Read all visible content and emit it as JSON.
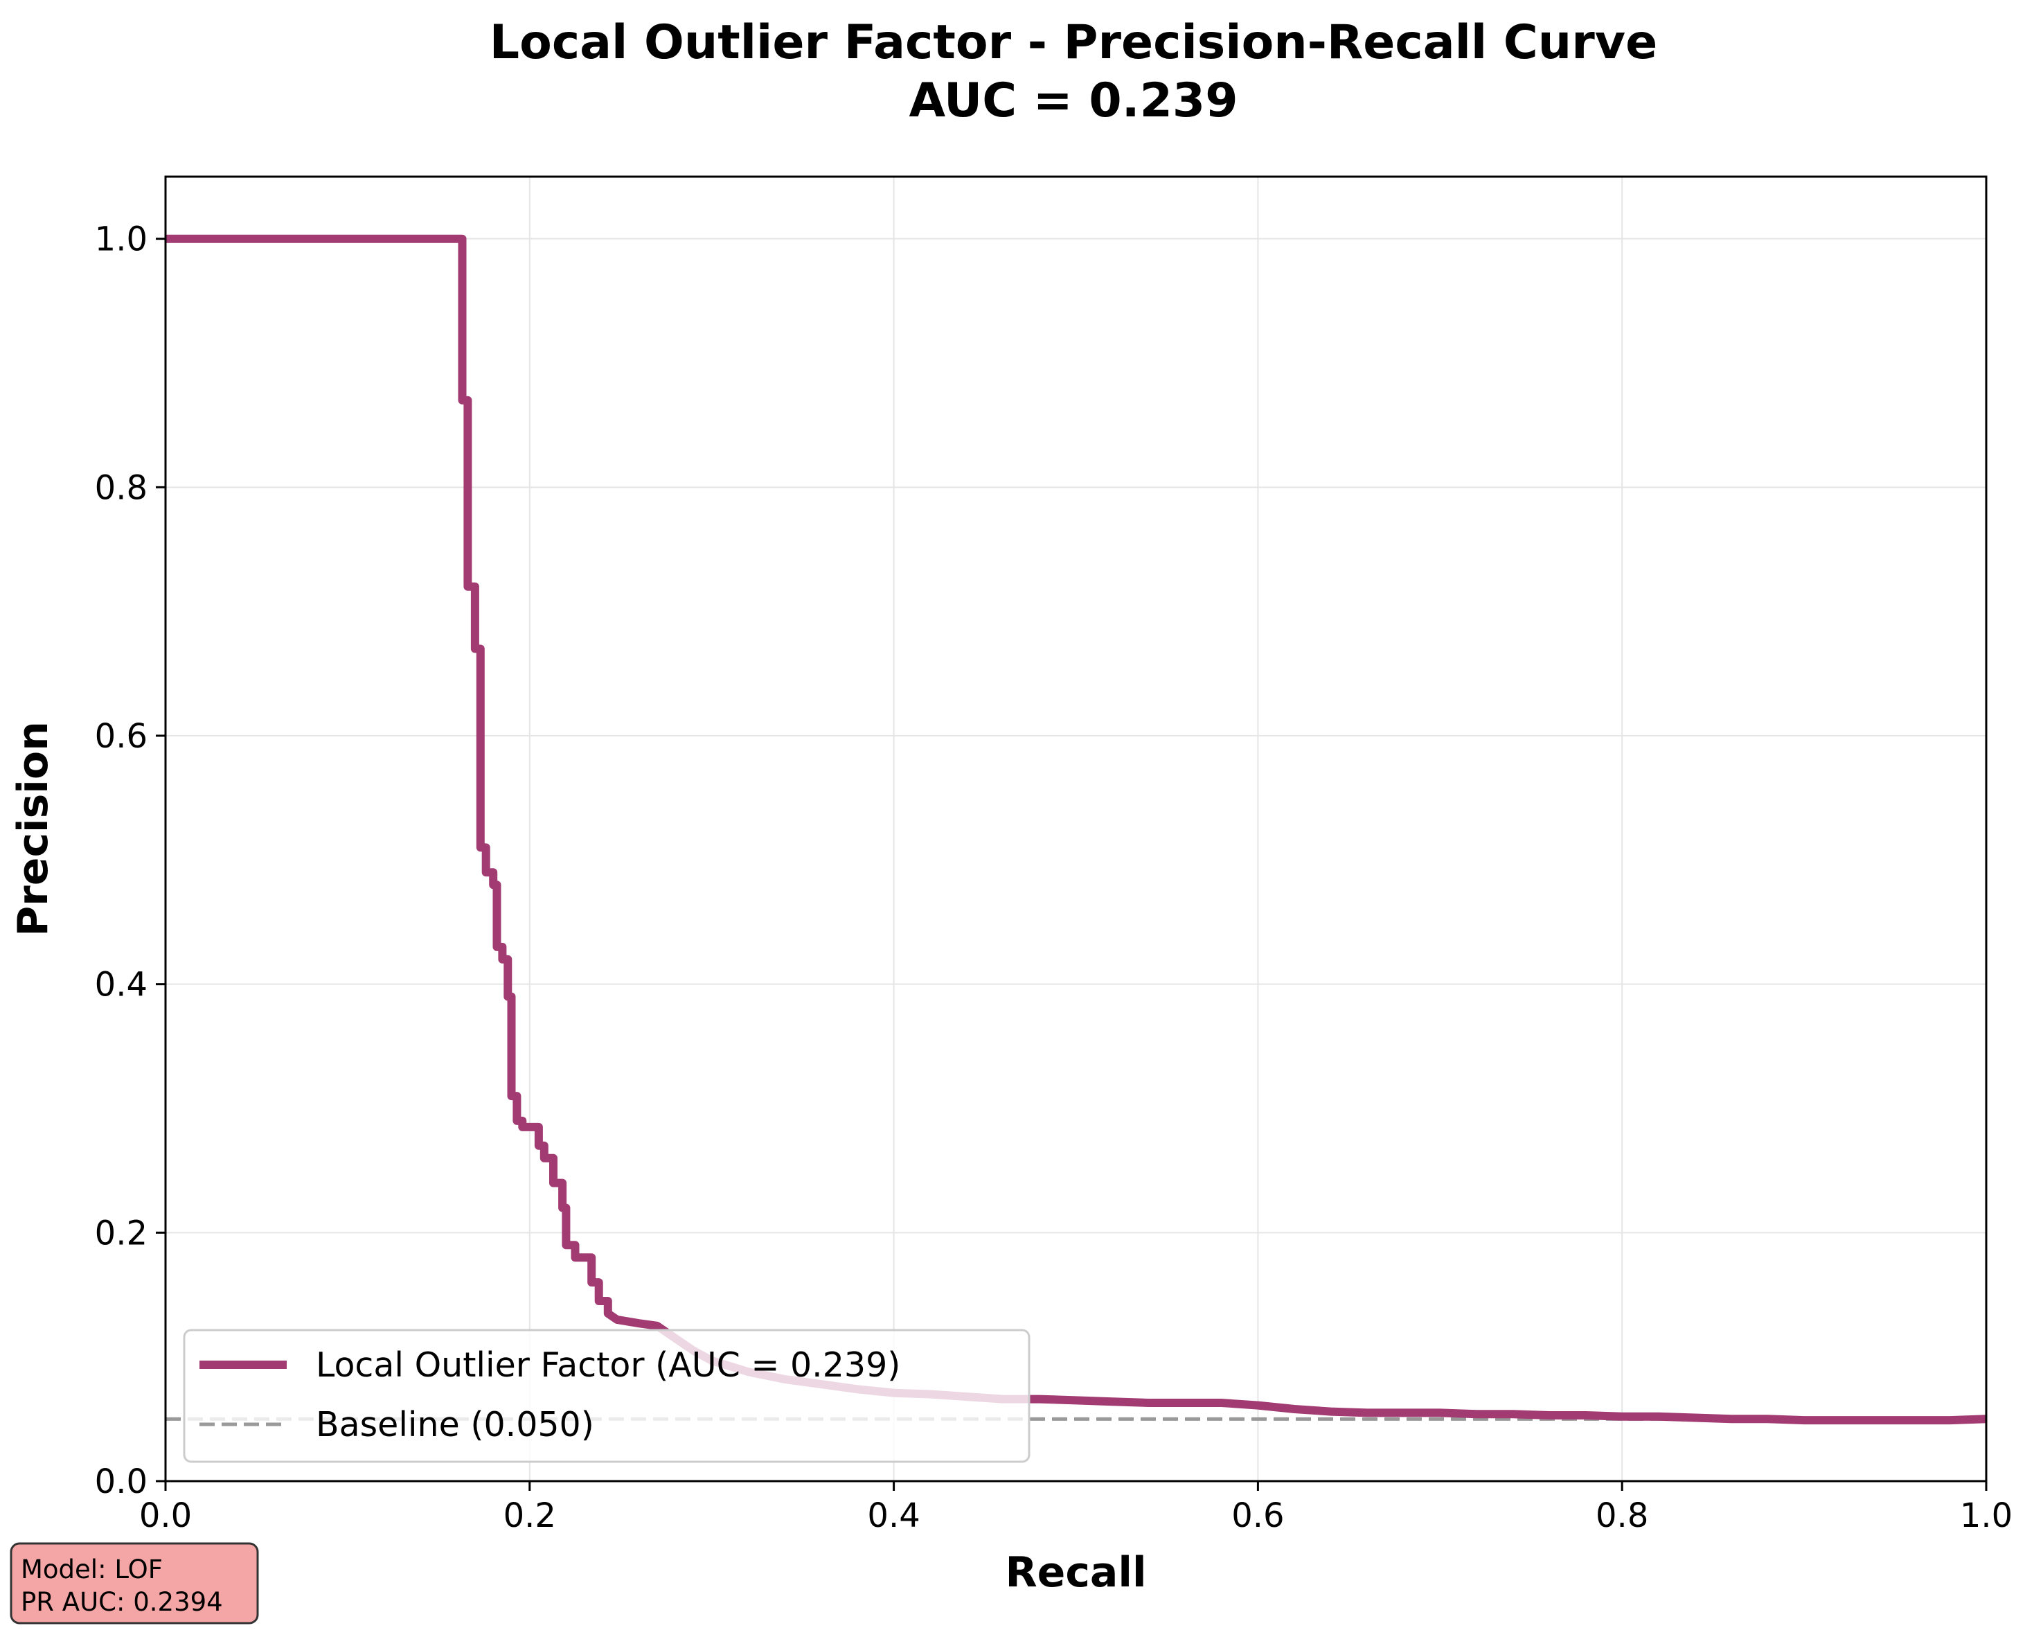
{
  "colors": {
    "curve": "#A23B72",
    "baseline": "#999999",
    "grid": "#e5e5e5",
    "axes": "#000000",
    "info_box_fill": "#F4A6A6",
    "info_box_stroke": "#333333"
  },
  "info_box": {
    "line1": "Model: LOF",
    "line2": "PR AUC: 0.2394"
  },
  "chart_data": {
    "type": "line",
    "title_line1": "Local Outlier Factor - Precision-Recall Curve",
    "title_line2": "AUC = 0.239",
    "xlabel": "Recall",
    "ylabel": "Precision",
    "xlim": [
      0,
      1
    ],
    "ylim": [
      0,
      1.05
    ],
    "xticks": [
      0,
      0.2,
      0.4,
      0.6,
      0.8,
      1.0
    ],
    "xtick_labels": [
      "0.0",
      "0.2",
      "0.4",
      "0.6",
      "0.8",
      "1.0"
    ],
    "yticks": [
      0,
      0.2,
      0.4,
      0.6,
      0.8,
      1.0
    ],
    "ytick_labels": [
      "0.0",
      "0.2",
      "0.4",
      "0.6",
      "0.8",
      "1.0"
    ],
    "grid": true,
    "legend_position": "lower-left",
    "series": [
      {
        "name": "Local Outlier Factor (AUC = 0.239)",
        "style": "solid",
        "points": [
          [
            0.0,
            1.0
          ],
          [
            0.163,
            1.0
          ],
          [
            0.163,
            0.87
          ],
          [
            0.166,
            0.87
          ],
          [
            0.166,
            0.72
          ],
          [
            0.17,
            0.72
          ],
          [
            0.17,
            0.67
          ],
          [
            0.173,
            0.67
          ],
          [
            0.173,
            0.51
          ],
          [
            0.176,
            0.51
          ],
          [
            0.176,
            0.49
          ],
          [
            0.18,
            0.49
          ],
          [
            0.18,
            0.48
          ],
          [
            0.182,
            0.48
          ],
          [
            0.182,
            0.43
          ],
          [
            0.185,
            0.43
          ],
          [
            0.185,
            0.42
          ],
          [
            0.188,
            0.42
          ],
          [
            0.188,
            0.39
          ],
          [
            0.19,
            0.39
          ],
          [
            0.19,
            0.31
          ],
          [
            0.193,
            0.31
          ],
          [
            0.193,
            0.29
          ],
          [
            0.196,
            0.29
          ],
          [
            0.196,
            0.285
          ],
          [
            0.205,
            0.285
          ],
          [
            0.205,
            0.27
          ],
          [
            0.208,
            0.27
          ],
          [
            0.208,
            0.26
          ],
          [
            0.213,
            0.26
          ],
          [
            0.213,
            0.24
          ],
          [
            0.218,
            0.24
          ],
          [
            0.218,
            0.22
          ],
          [
            0.22,
            0.22
          ],
          [
            0.22,
            0.19
          ],
          [
            0.225,
            0.19
          ],
          [
            0.225,
            0.18
          ],
          [
            0.234,
            0.18
          ],
          [
            0.234,
            0.16
          ],
          [
            0.238,
            0.16
          ],
          [
            0.238,
            0.145
          ],
          [
            0.243,
            0.145
          ],
          [
            0.243,
            0.135
          ],
          [
            0.248,
            0.13
          ],
          [
            0.26,
            0.127
          ],
          [
            0.27,
            0.125
          ],
          [
            0.28,
            0.115
          ],
          [
            0.29,
            0.105
          ],
          [
            0.3,
            0.097
          ],
          [
            0.32,
            0.088
          ],
          [
            0.34,
            0.082
          ],
          [
            0.36,
            0.078
          ],
          [
            0.38,
            0.074
          ],
          [
            0.4,
            0.071
          ],
          [
            0.42,
            0.07
          ],
          [
            0.44,
            0.068
          ],
          [
            0.46,
            0.066
          ],
          [
            0.48,
            0.066
          ],
          [
            0.5,
            0.065
          ],
          [
            0.52,
            0.064
          ],
          [
            0.54,
            0.063
          ],
          [
            0.56,
            0.063
          ],
          [
            0.58,
            0.063
          ],
          [
            0.6,
            0.061
          ],
          [
            0.62,
            0.058
          ],
          [
            0.64,
            0.056
          ],
          [
            0.66,
            0.055
          ],
          [
            0.68,
            0.055
          ],
          [
            0.7,
            0.055
          ],
          [
            0.72,
            0.054
          ],
          [
            0.74,
            0.054
          ],
          [
            0.76,
            0.053
          ],
          [
            0.78,
            0.053
          ],
          [
            0.8,
            0.052
          ],
          [
            0.82,
            0.052
          ],
          [
            0.84,
            0.051
          ],
          [
            0.86,
            0.05
          ],
          [
            0.88,
            0.05
          ],
          [
            0.9,
            0.049
          ],
          [
            0.92,
            0.049
          ],
          [
            0.94,
            0.049
          ],
          [
            0.96,
            0.049
          ],
          [
            0.98,
            0.049
          ],
          [
            1.0,
            0.05
          ]
        ]
      },
      {
        "name": "Baseline (0.050)",
        "style": "dashed",
        "points": [
          [
            0.0,
            0.05
          ],
          [
            1.0,
            0.05
          ]
        ]
      }
    ]
  }
}
